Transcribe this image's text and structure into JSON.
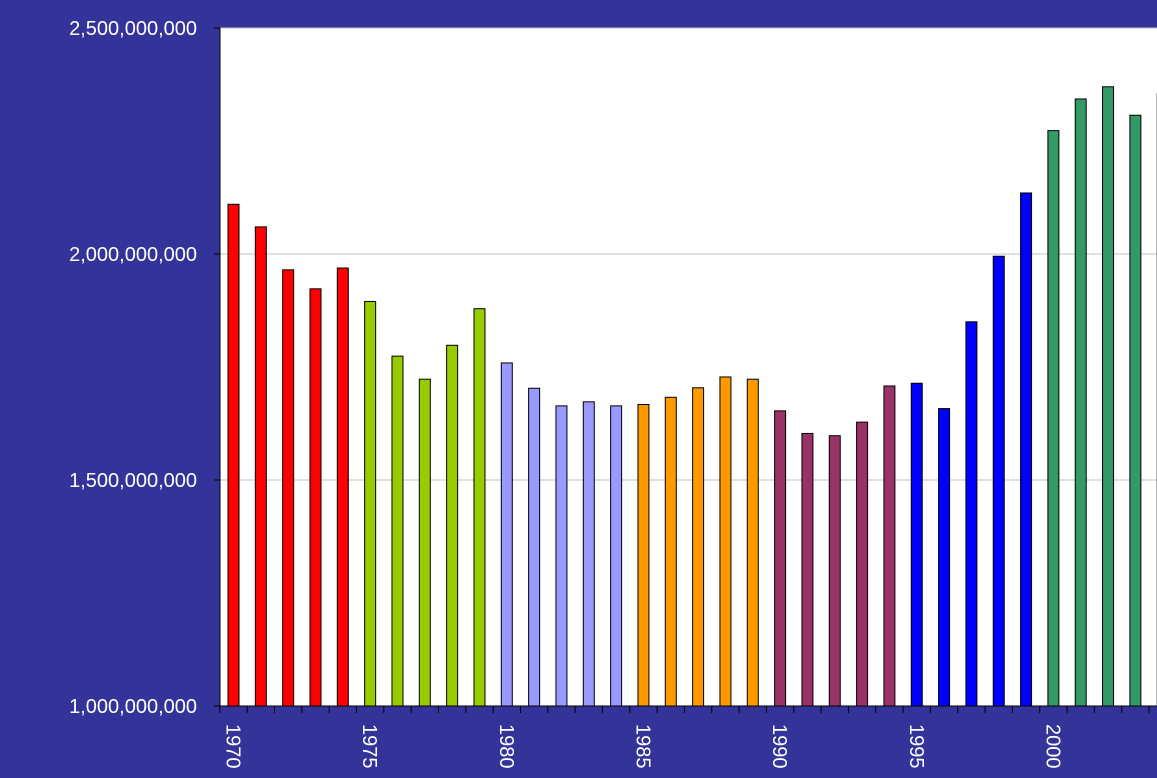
{
  "chart_data": {
    "type": "bar",
    "title": "",
    "xlabel": "",
    "ylabel": "",
    "ylim": [
      1000000000,
      2500000000
    ],
    "y_ticks": [
      1000000000,
      1500000000,
      2000000000,
      2500000000
    ],
    "y_tick_labels": [
      "1,000,000,000",
      "1,500,000,000",
      "2,000,000,000",
      "2,500,000,000"
    ],
    "x_tick_labels": [
      {
        "index": 0,
        "label": "1970"
      },
      {
        "index": 5,
        "label": "1975"
      },
      {
        "index": 10,
        "label": "1980"
      },
      {
        "index": 15,
        "label": "1985"
      },
      {
        "index": 20,
        "label": "1990"
      },
      {
        "index": 25,
        "label": "1995"
      },
      {
        "index": 30,
        "label": "2000"
      }
    ],
    "grid": true,
    "legend": "none",
    "categories": [
      "1970",
      "1971",
      "1972",
      "1973",
      "1974",
      "1975",
      "1976",
      "1977",
      "1978",
      "1979",
      "1980",
      "1981",
      "1982",
      "1983",
      "1984",
      "1985",
      "1986",
      "1987",
      "1988",
      "1989",
      "1990",
      "1991",
      "1992",
      "1993",
      "1994",
      "1995",
      "1996",
      "1997",
      "1998",
      "1999",
      "2000",
      "2001",
      "2002",
      "2003",
      "2004"
    ],
    "values": [
      2110000000,
      2060000000,
      1965000000,
      1923000000,
      1969000000,
      1895000000,
      1774000000,
      1723000000,
      1798000000,
      1879000000,
      1759000000,
      1703000000,
      1664000000,
      1673000000,
      1664000000,
      1667000000,
      1683000000,
      1704000000,
      1728000000,
      1723000000,
      1653000000,
      1603000000,
      1598000000,
      1628000000,
      1708000000,
      1714000000,
      1658000000,
      1850000000,
      1995000000,
      2135000000,
      2273000000,
      2343000000,
      2370000000,
      2307000000,
      2355000000
    ],
    "bar_colors": [
      "#ff0000",
      "#ff0000",
      "#ff0000",
      "#ff0000",
      "#ff0000",
      "#99cc00",
      "#99cc00",
      "#99cc00",
      "#99cc00",
      "#99cc00",
      "#9999ff",
      "#9999ff",
      "#9999ff",
      "#9999ff",
      "#9999ff",
      "#ff9900",
      "#ff9900",
      "#ff9900",
      "#ff9900",
      "#ff9900",
      "#993366",
      "#993366",
      "#993366",
      "#993366",
      "#993366",
      "#0000ff",
      "#0000ff",
      "#0000ff",
      "#0000ff",
      "#0000ff",
      "#339966",
      "#339966",
      "#339966",
      "#339966",
      "#339966"
    ],
    "colors": {
      "background": "#333399",
      "plot_area": "#ffffff",
      "gridline": "#c0c0c0",
      "bar_outline": "#000000",
      "axis_text": "#ffffff"
    }
  }
}
